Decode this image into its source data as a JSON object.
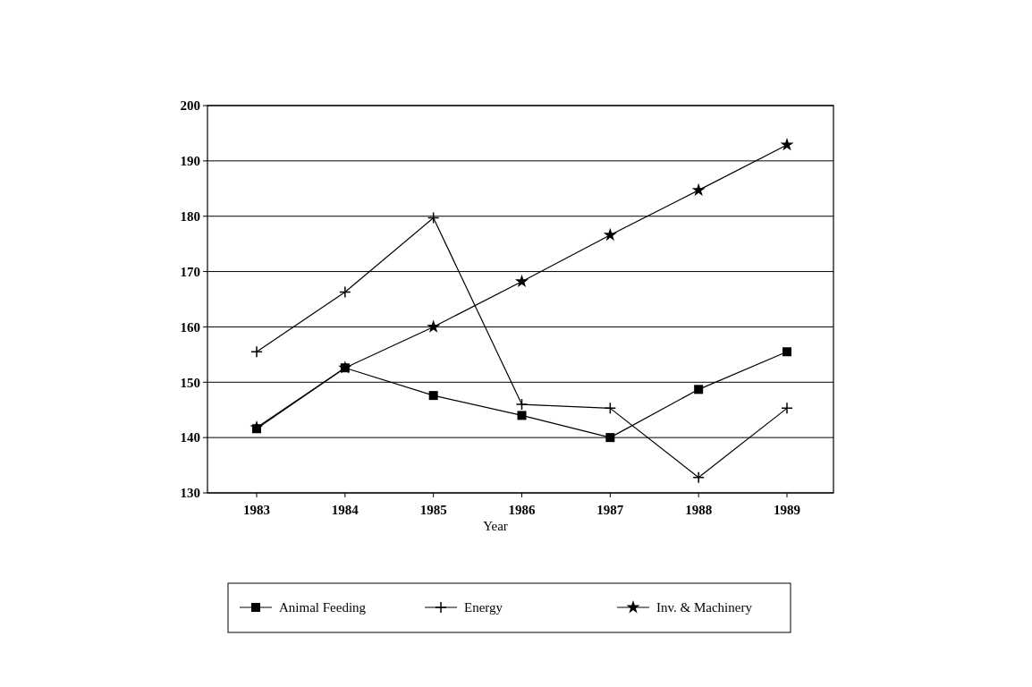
{
  "chart_data": {
    "type": "line",
    "xlabel": "Year",
    "categories": [
      "1983",
      "1984",
      "1985",
      "1986",
      "1987",
      "1988",
      "1989"
    ],
    "ylim": [
      130,
      200
    ],
    "yticks": [
      130,
      140,
      150,
      160,
      170,
      180,
      190,
      200
    ],
    "grid": "y",
    "legend": "bottom",
    "series": [
      {
        "name": "Animal Feeding",
        "color": "#000000",
        "marker": "square",
        "values": [
          141.6,
          152.6,
          147.6,
          144,
          140,
          148.7,
          155.5
        ]
      },
      {
        "name": "Energy",
        "color": "#000000",
        "marker": "cross",
        "values": [
          155.5,
          166.3,
          179.7,
          146,
          145.3,
          132.8,
          145.3
        ]
      },
      {
        "name": "Inv. & Machinery",
        "color": "#000000",
        "marker": "star",
        "values": [
          141.8,
          152.6,
          160,
          168.2,
          176.6,
          184.7,
          192.9
        ]
      }
    ]
  }
}
